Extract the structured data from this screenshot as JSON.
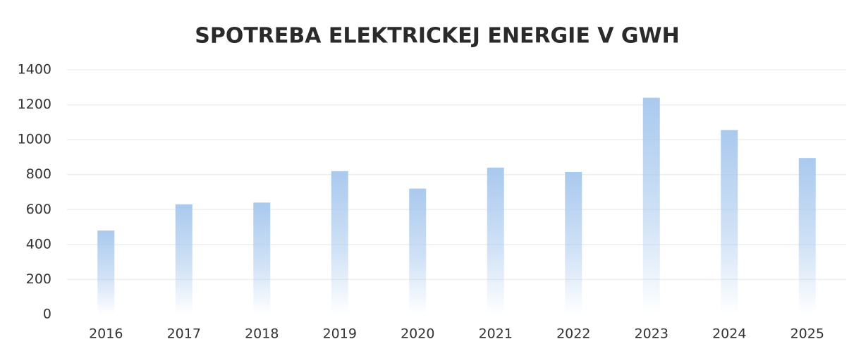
{
  "chart_data": {
    "type": "bar",
    "title": "SPOTREBA ELEKTRICKEJ ENERGIE V GWH",
    "categories": [
      "2016",
      "2017",
      "2018",
      "2019",
      "2020",
      "2021",
      "2022",
      "2023",
      "2024",
      "2025"
    ],
    "values": [
      480,
      630,
      640,
      820,
      720,
      840,
      815,
      1240,
      1055,
      895
    ],
    "color": "#a9c9ee",
    "ylim": [
      0,
      1400
    ],
    "yticks": [
      0,
      200,
      400,
      600,
      800,
      1000,
      1200,
      1400
    ],
    "grid": true
  }
}
